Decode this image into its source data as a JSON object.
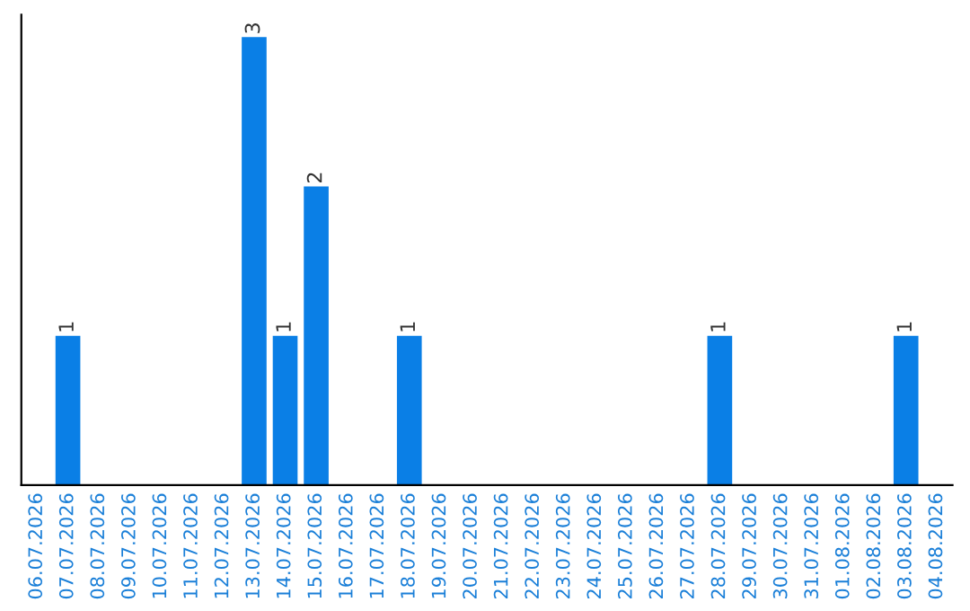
{
  "chart_data": {
    "type": "bar",
    "categories": [
      "06.07.2026",
      "07.07.2026",
      "08.07.2026",
      "09.07.2026",
      "10.07.2026",
      "11.07.2026",
      "12.07.2026",
      "13.07.2026",
      "14.07.2026",
      "15.07.2026",
      "16.07.2026",
      "17.07.2026",
      "18.07.2026",
      "19.07.2026",
      "20.07.2026",
      "21.07.2026",
      "22.07.2026",
      "23.07.2026",
      "24.07.2026",
      "25.07.2026",
      "26.07.2026",
      "27.07.2026",
      "28.07.2026",
      "29.07.2026",
      "30.07.2026",
      "31.07.2026",
      "01.08.2026",
      "02.08.2026",
      "03.08.2026",
      "04.08.2026"
    ],
    "values": [
      0,
      1,
      0,
      0,
      0,
      0,
      0,
      3,
      1,
      2,
      0,
      0,
      1,
      0,
      0,
      0,
      0,
      0,
      0,
      0,
      0,
      0,
      1,
      0,
      0,
      0,
      0,
      0,
      1,
      0
    ],
    "value_labels": [
      null,
      "1",
      null,
      null,
      null,
      null,
      null,
      "3",
      "1",
      "2",
      null,
      null,
      "1",
      null,
      null,
      null,
      null,
      null,
      null,
      null,
      null,
      null,
      "1",
      null,
      null,
      null,
      null,
      null,
      "1",
      null
    ],
    "color": "#0a7fe6",
    "grid": false,
    "tick_labels": "x"
  }
}
